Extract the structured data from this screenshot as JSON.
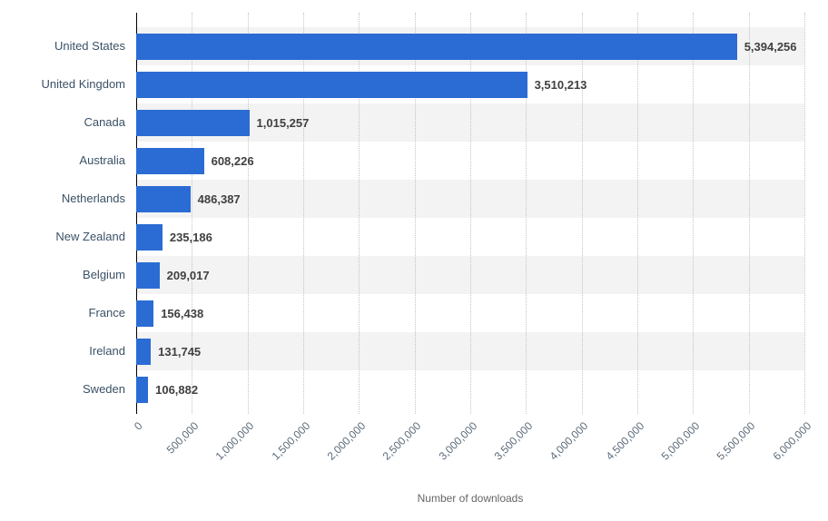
{
  "chart_data": {
    "type": "bar",
    "orientation": "horizontal",
    "title": "",
    "xlabel": "Number of downloads",
    "ylabel": "",
    "categories": [
      "United States",
      "United Kingdom",
      "Canada",
      "Australia",
      "Netherlands",
      "New Zealand",
      "Belgium",
      "France",
      "Ireland",
      "Sweden"
    ],
    "values": [
      5394256,
      3510213,
      1015257,
      608226,
      486387,
      235186,
      209017,
      156438,
      131745,
      106882
    ],
    "value_labels": [
      "5,394,256",
      "3,510,213",
      "1,015,257",
      "608,226",
      "486,387",
      "235,186",
      "209,017",
      "156,438",
      "131,745",
      "106,882"
    ],
    "xlim": [
      0,
      6000000
    ],
    "x_tick_values": [
      0,
      500000,
      1000000,
      1500000,
      2000000,
      2500000,
      3000000,
      3500000,
      4000000,
      4500000,
      5000000,
      5500000,
      6000000
    ],
    "x_tick_labels": [
      "0",
      "500,000",
      "1,000,000",
      "1,500,000",
      "2,000,000",
      "2,500,000",
      "3,000,000",
      "3,500,000",
      "4,000,000",
      "4,500,000",
      "5,000,000",
      "5,500,000",
      "6,000,000"
    ],
    "grid": "dotted-vertical",
    "legend": "none",
    "colors": {
      "bar": "#2b6cd4",
      "row_band": "#f3f3f3",
      "grid": "#c4c4c4",
      "axis": "#000000",
      "category_label": "#3b5166",
      "value_label": "#404040",
      "tick_label": "#5b6b7a",
      "axis_title": "#666666"
    }
  }
}
